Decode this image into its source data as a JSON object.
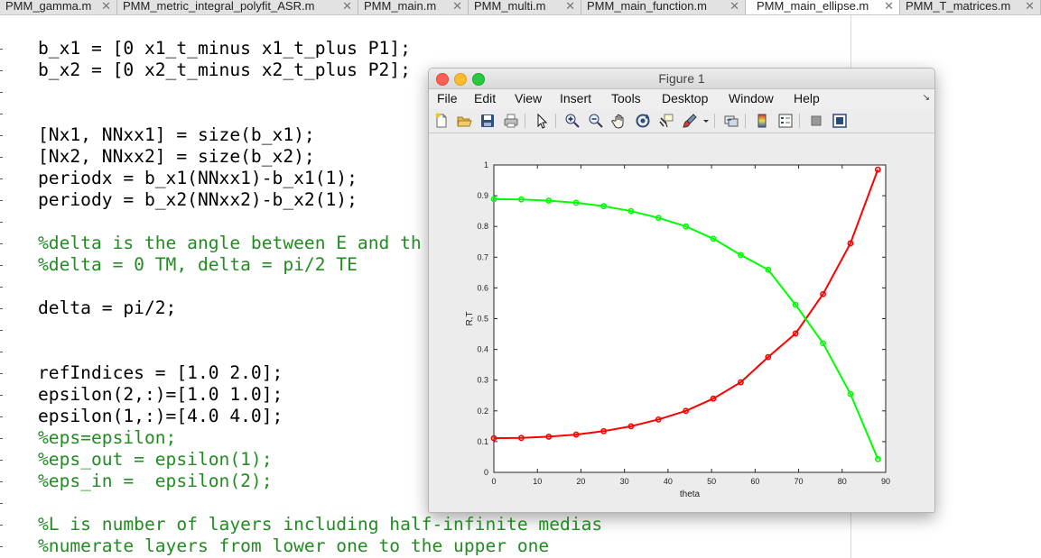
{
  "tabs": [
    {
      "label": "PMM_gamma.m",
      "active": false
    },
    {
      "label": "PMM_metric_integral_polyfit_ASR.m",
      "active": false
    },
    {
      "label": "PMM_main.m",
      "active": false
    },
    {
      "label": "PMM_multi.m",
      "active": false
    },
    {
      "label": "PMM_main_function.m",
      "active": false
    },
    {
      "label": "PMM_main_ellipse.m",
      "active": true
    },
    {
      "label": "PMM_T_matrices.m",
      "active": false
    }
  ],
  "tab_close_glyph": "✕",
  "code_lines": [
    {
      "text": "b_x1 = [0 x1_t_minus x1_t_plus P1];",
      "comment": false
    },
    {
      "text": "b_x2 = [0 x2_t_minus x2_t_plus P2];",
      "comment": false
    },
    {
      "text": "",
      "comment": false
    },
    {
      "text": "",
      "comment": false
    },
    {
      "text": "[Nx1, NNxx1] = size(b_x1);",
      "comment": false
    },
    {
      "text": "[Nx2, NNxx2] = size(b_x2);",
      "comment": false
    },
    {
      "text": "periodx = b_x1(NNxx1)-b_x1(1);",
      "comment": false
    },
    {
      "text": "periody = b_x2(NNxx2)-b_x2(1);",
      "comment": false
    },
    {
      "text": "",
      "comment": false
    },
    {
      "text": "%delta is the angle between E and th",
      "comment": true
    },
    {
      "text": "%delta = 0 TM, delta = pi/2 TE",
      "comment": true
    },
    {
      "text": "",
      "comment": false
    },
    {
      "text": "delta = pi/2;",
      "comment": false
    },
    {
      "text": "",
      "comment": false
    },
    {
      "text": "",
      "comment": false
    },
    {
      "text": "refIndices = [1.0 2.0];",
      "comment": false
    },
    {
      "text": "epsilon(2,:)=[1.0 1.0];",
      "comment": false
    },
    {
      "text": "epsilon(1,:)=[4.0 4.0];",
      "comment": false
    },
    {
      "text": "%eps=epsilon;",
      "comment": true
    },
    {
      "text": "%eps_out = epsilon(1);",
      "comment": true
    },
    {
      "text": "%eps_in =  epsilon(2);",
      "comment": true
    },
    {
      "text": "",
      "comment": false
    },
    {
      "text": "%L is number of layers including half-infinite medias",
      "comment": true
    },
    {
      "text": "%numerate layers from lower one to the upper one",
      "comment": true
    }
  ],
  "figure": {
    "title": "Figure 1",
    "menus": [
      "File",
      "Edit",
      "View",
      "Insert",
      "Tools",
      "Desktop",
      "Window",
      "Help"
    ],
    "menu_arrow": "↘",
    "toolbar_icons": [
      "new-figure-icon",
      "open-icon",
      "save-icon",
      "print-icon",
      "pointer-icon",
      "zoom-in-icon",
      "zoom-out-icon",
      "pan-icon",
      "rotate-icon",
      "data-cursor-icon",
      "brush-icon",
      "brush-dropdown-icon",
      "link-plot-icon",
      "colorbar-icon",
      "legend-icon",
      "hide-plot-tools-icon",
      "show-plot-tools-icon"
    ]
  },
  "chart_data": {
    "type": "line",
    "title": "",
    "xlabel": "theta",
    "ylabel": "R,T",
    "xlim": [
      0,
      90
    ],
    "ylim": [
      0,
      1
    ],
    "xticks": [
      "0",
      "10",
      "20",
      "30",
      "40",
      "50",
      "60",
      "70",
      "80",
      "90"
    ],
    "yticks": [
      "0",
      "0.1",
      "0.2",
      "0.3",
      "0.4",
      "0.5",
      "0.6",
      "0.7",
      "0.8",
      "0.9",
      "1"
    ],
    "grid": false,
    "legend": "none",
    "x": [
      0,
      6.3,
      12.6,
      18.9,
      25.2,
      31.5,
      37.8,
      44.1,
      50.4,
      56.7,
      63.0,
      69.3,
      75.6,
      81.9,
      88.2
    ],
    "series": [
      {
        "color": "#ff0000",
        "marker": "circle",
        "values": [
          0.111,
          0.112,
          0.116,
          0.123,
          0.134,
          0.15,
          0.172,
          0.2,
          0.24,
          0.293,
          0.375,
          0.452,
          0.58,
          0.745,
          0.985
        ]
      },
      {
        "color": "#00ff00",
        "marker": "circle",
        "values": [
          0.889,
          0.888,
          0.884,
          0.877,
          0.866,
          0.85,
          0.828,
          0.8,
          0.76,
          0.707,
          0.659,
          0.545,
          0.42,
          0.255,
          0.043
        ]
      }
    ]
  }
}
